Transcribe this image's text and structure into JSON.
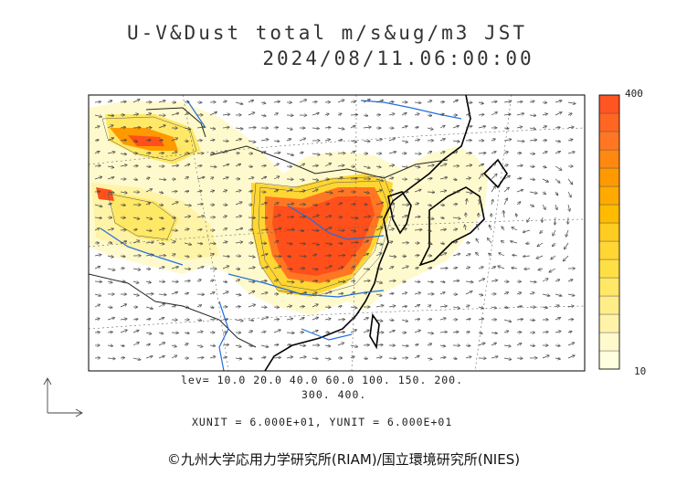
{
  "header": {
    "title": "U-V&Dust total m/s&ug/m3 JST",
    "datetime": "2024/08/11.06:00:00"
  },
  "colorbar": {
    "max_label": "400",
    "min_label": "10",
    "colors": [
      "#ffffe0",
      "#fffacd",
      "#fff3a8",
      "#ffee88",
      "#ffe866",
      "#ffe044",
      "#ffd633",
      "#ffcc22",
      "#ffbb00",
      "#ffaa00",
      "#ff9900",
      "#ff8811",
      "#ff7722",
      "#ff6622",
      "#ff5522"
    ]
  },
  "legend": {
    "levels": "lev= 10.0 20.0 40.0 60.0 100. 150. 200.",
    "levels_cont": "300. 400.",
    "units": "XUNIT = 6.000E+01, YUNIT = 6.000E+01"
  },
  "footer": {
    "copyright": "©九州大学応用力学研究所(RIAM)/国立環境研究所(NIES)"
  },
  "map_colors": {
    "coast": "#000000",
    "river": "#1f6fe0",
    "border": "#333333",
    "low": "#fffacd",
    "mid": "#ffd633",
    "high": "#ff8811",
    "peak": "#ff4f1a"
  }
}
